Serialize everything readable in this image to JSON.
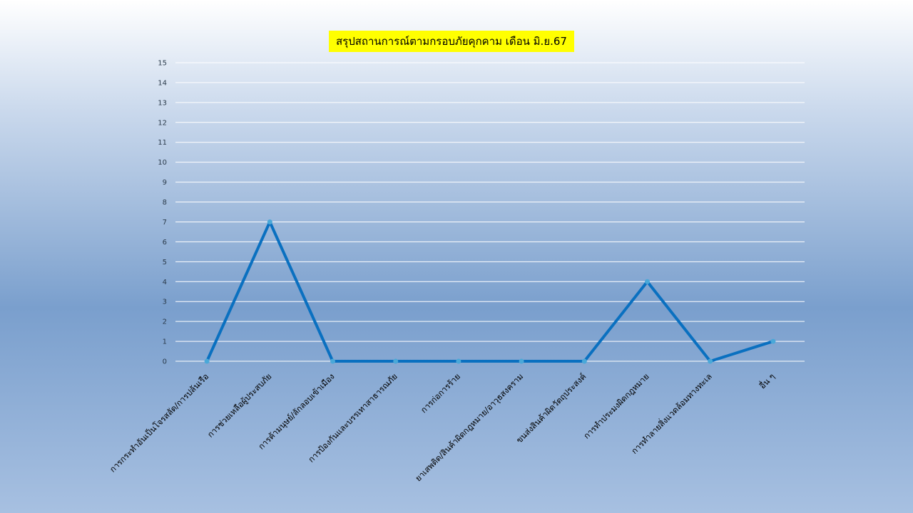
{
  "chart_data": {
    "type": "line",
    "title": "สรุปสถานการณ์ตามกรอบภัยคุกคาม เดือน มิ.ย.67",
    "categories": [
      "การกระทำอันเป็นโจรสลัด/การปล้นเรือ",
      "การช่วยเหลือผู้ประสบภัย",
      "การค้ามนุษย์/ลักลอบเข้าเมือง",
      "การป้องกันและบรรเทาสาธารณภัย",
      "การก่อการร้าย",
      "ยาเสพติด/สินค้าผิดกฎหมาย/อาวุธสงคราม",
      "ขนส่งสินค้าผิดวัตถุประสงค์",
      "การทำประมงผิดกฎหมาย",
      "การทำลายสิ่งแวดล้อมทางทะเล",
      "อื่น ๆ"
    ],
    "values": [
      0,
      7,
      0,
      0,
      0,
      0,
      0,
      4,
      0,
      1
    ],
    "yticks": [
      "0",
      "1",
      "2",
      "3",
      "4",
      "5",
      "6",
      "7",
      "8",
      "9",
      "10",
      "11",
      "12",
      "13",
      "14",
      "15"
    ],
    "ylim": [
      0,
      15
    ],
    "grid": true,
    "xlabel": "",
    "ylabel": "",
    "line_color": "#0a70c0",
    "marker_color": "#4aa8d8"
  }
}
